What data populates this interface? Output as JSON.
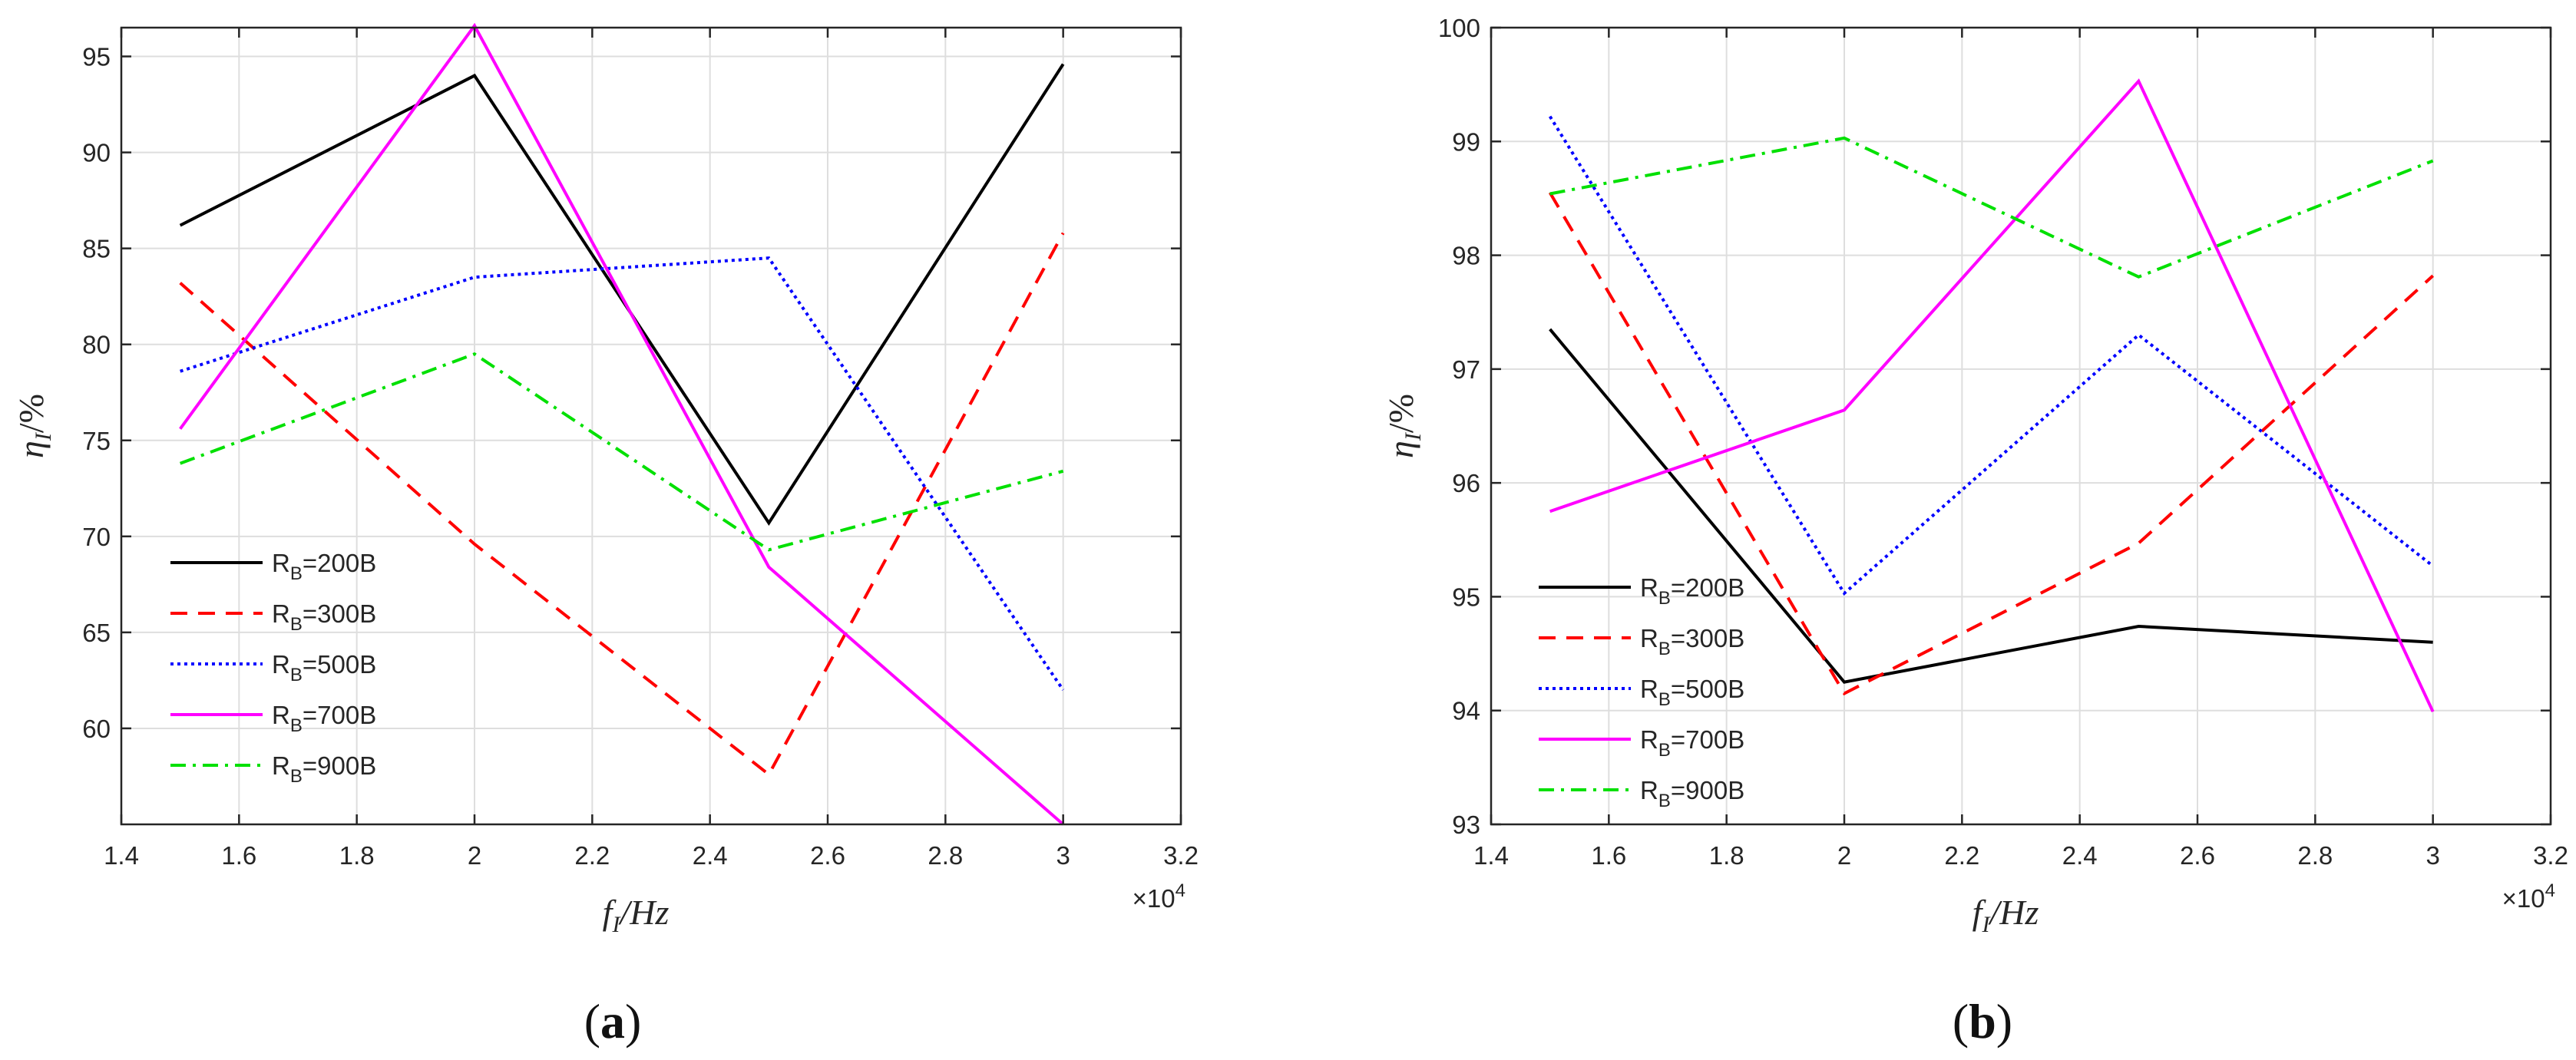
{
  "figure": {
    "panels": [
      "(a)",
      "(b)"
    ]
  },
  "colors": {
    "series_200": "#000000",
    "series_300": "#ff0000",
    "series_500": "#0000ff",
    "series_700": "#ff00ff",
    "series_900": "#00e000",
    "axis": "#262626",
    "grid": "#dedede"
  },
  "chart_data": [
    {
      "type": "line",
      "panel": "(a)",
      "title": "",
      "xlabel": "f_I/Hz",
      "ylabel": "η_I/%",
      "x_exponent_label": "×10",
      "x_exponent": "4",
      "xlim": [
        1.4,
        3.2
      ],
      "ylim": [
        55,
        96.5
      ],
      "xticks": [
        "1.4",
        "1.6",
        "1.8",
        "2",
        "2.2",
        "2.4",
        "2.6",
        "2.8",
        "3",
        "3.2"
      ],
      "yticks": [
        "60",
        "65",
        "70",
        "75",
        "80",
        "85",
        "90",
        "95"
      ],
      "grid": true,
      "legend_position": "bottom-left",
      "series": [
        {
          "name": "RB=200B",
          "sub": "B",
          "label_main": "R",
          "label_rest": "=200B",
          "style": "solid",
          "x": [
            1.5,
            2.0,
            2.5,
            3.0
          ],
          "values": [
            86.2,
            94.0,
            70.7,
            94.6
          ]
        },
        {
          "name": "RB=300B",
          "sub": "B",
          "label_main": "R",
          "label_rest": "=300B",
          "style": "dashed",
          "x": [
            1.5,
            2.0,
            2.5,
            3.0
          ],
          "values": [
            83.2,
            69.6,
            57.6,
            85.8
          ]
        },
        {
          "name": "RB=500B",
          "sub": "B",
          "label_main": "R",
          "label_rest": "=500B",
          "style": "dotted",
          "x": [
            1.5,
            2.0,
            2.5,
            3.0
          ],
          "values": [
            78.6,
            83.5,
            84.5,
            62.0
          ]
        },
        {
          "name": "RB=700B",
          "sub": "B",
          "label_main": "R",
          "label_rest": "=700B",
          "style": "solid",
          "x": [
            1.5,
            2.0,
            2.5,
            3.0
          ],
          "values": [
            75.6,
            96.6,
            68.4,
            55.0
          ]
        },
        {
          "name": "RB=900B",
          "sub": "B",
          "label_main": "R",
          "label_rest": "=900B",
          "style": "dashdot",
          "x": [
            1.5,
            2.0,
            2.5,
            3.0
          ],
          "values": [
            73.8,
            79.5,
            69.3,
            73.4
          ]
        }
      ]
    },
    {
      "type": "line",
      "panel": "(b)",
      "title": "",
      "xlabel": "f_I/Hz",
      "ylabel": "η_I/%",
      "x_exponent_label": "×10",
      "x_exponent": "4",
      "xlim": [
        1.4,
        3.2
      ],
      "ylim": [
        93,
        100
      ],
      "xticks": [
        "1.4",
        "1.6",
        "1.8",
        "2",
        "2.2",
        "2.4",
        "2.6",
        "2.8",
        "3",
        "3.2"
      ],
      "yticks": [
        "93",
        "94",
        "95",
        "96",
        "97",
        "98",
        "99",
        "100"
      ],
      "grid": true,
      "legend_position": "bottom-left",
      "series": [
        {
          "name": "RB=200B",
          "sub": "B",
          "label_main": "R",
          "label_rest": "=200B",
          "style": "solid",
          "x": [
            1.5,
            2.0,
            2.5,
            3.0
          ],
          "values": [
            97.35,
            94.25,
            94.74,
            94.6
          ]
        },
        {
          "name": "RB=300B",
          "sub": "B",
          "label_main": "R",
          "label_rest": "=300B",
          "style": "dashed",
          "x": [
            1.5,
            2.0,
            2.5,
            3.0
          ],
          "values": [
            98.55,
            94.15,
            95.47,
            97.82
          ]
        },
        {
          "name": "RB=500B",
          "sub": "B",
          "label_main": "R",
          "label_rest": "=500B",
          "style": "dotted",
          "x": [
            1.5,
            2.0,
            2.5,
            3.0
          ],
          "values": [
            99.22,
            95.03,
            97.3,
            95.27
          ]
        },
        {
          "name": "RB=700B",
          "sub": "B",
          "label_main": "R",
          "label_rest": "=700B",
          "style": "solid",
          "x": [
            1.5,
            2.0,
            2.5,
            3.0
          ],
          "values": [
            95.75,
            96.64,
            99.53,
            93.99
          ]
        },
        {
          "name": "RB=900B",
          "sub": "B",
          "label_main": "R",
          "label_rest": "=900B",
          "style": "dashdot",
          "x": [
            1.5,
            2.0,
            2.5,
            3.0
          ],
          "values": [
            98.54,
            99.03,
            97.81,
            98.83
          ]
        }
      ]
    }
  ]
}
